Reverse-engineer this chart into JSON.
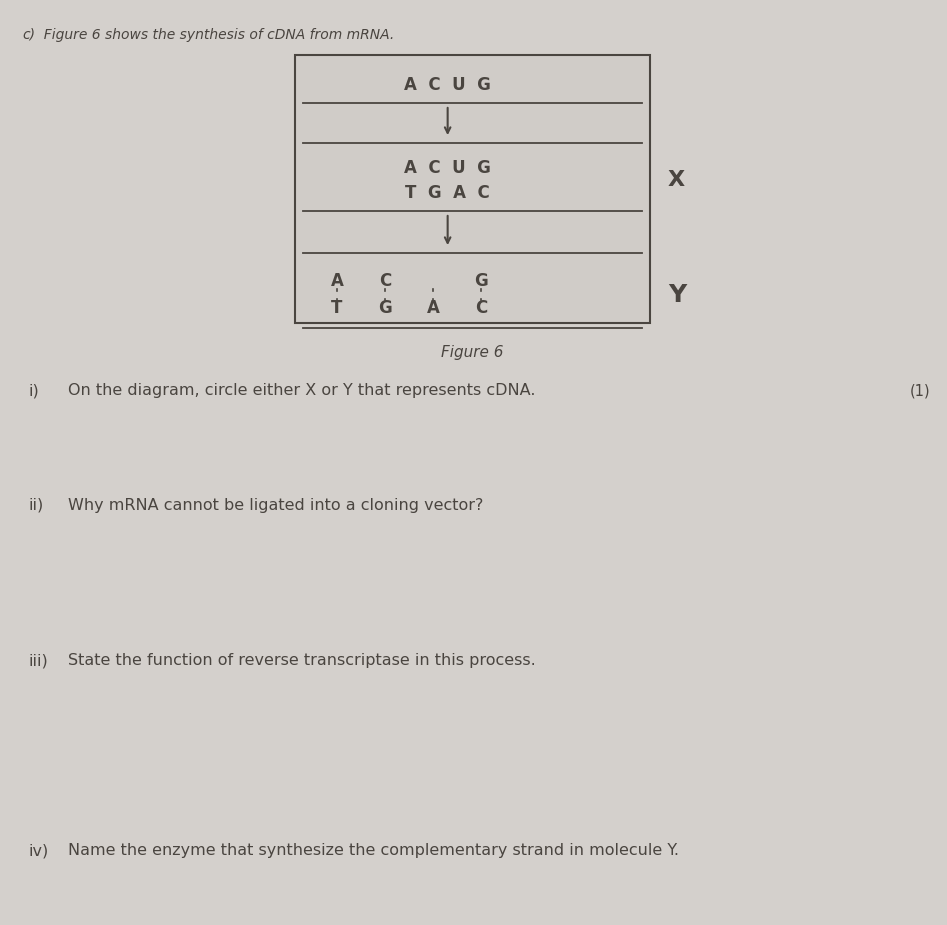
{
  "bg_color": "#c8c5c0",
  "page_color": "#d4d0cc",
  "box_color": "#c0bcb8",
  "text_color": "#4a4540",
  "title_text_c": "c)",
  "title_text_body": "  Figure 6 shows the synthesis of cDNA from mRNA.",
  "figure_label": "Figure 6",
  "mrna_row": "A  C  U  G",
  "x_row1": "A  C  U  G",
  "x_row2": "T  G  A  C",
  "label_X": "X",
  "label_Y": "Y",
  "y_top_bases": [
    "A",
    "C",
    "",
    "G"
  ],
  "y_bot_bases": [
    "T",
    "G",
    "A",
    "C"
  ],
  "q1_num": "i)",
  "q1_text": "On the diagram, circle either X or Y that represents cDNA.",
  "q1_mark": "(1)",
  "q2_num": "ii)",
  "q2_text": "Why mRNA cannot be ligated into a cloning vector?",
  "q3_num": "iii)",
  "q3_text": "State the function of reverse transcriptase in this process.",
  "q4_num": "iv)",
  "q4_text": "Name the enzyme that synthesize the complementary strand in molecule Y."
}
